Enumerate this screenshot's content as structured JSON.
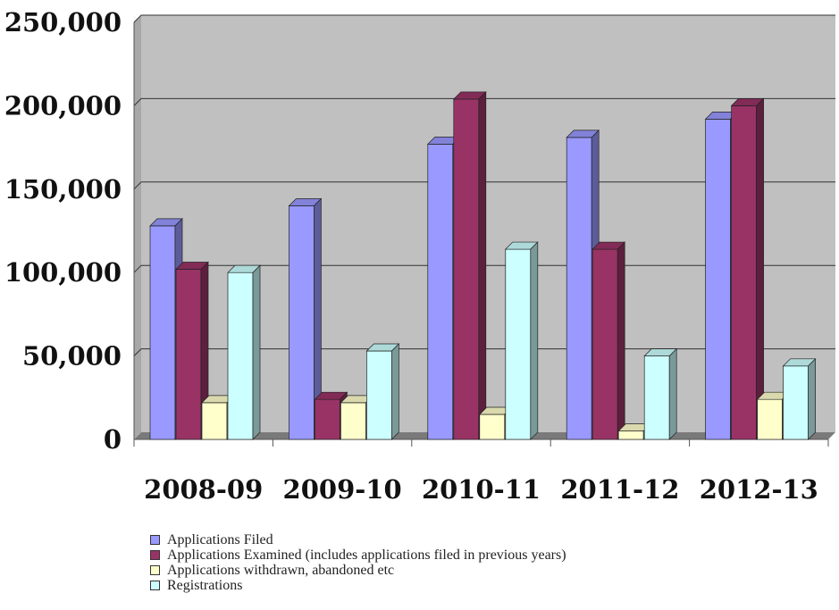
{
  "chart_data": {
    "type": "bar",
    "categories": [
      "2008-09",
      "2009-10",
      "2010-11",
      "2011-12",
      "2012-13"
    ],
    "series": [
      {
        "name": "Applications Filed",
        "color": "#9999ff",
        "values": [
          128000,
          140000,
          177000,
          181000,
          192000
        ]
      },
      {
        "name": "Applications Examined (includes applications filed in previous years)",
        "color": "#993366",
        "values": [
          102000,
          24000,
          204000,
          114000,
          200000
        ]
      },
      {
        "name": "Applications withdrawn, abandoned etc",
        "color": "#ffffcc",
        "values": [
          22000,
          22000,
          15000,
          5000,
          24000
        ]
      },
      {
        "name": "Registrations",
        "color": "#ccffff",
        "values": [
          100000,
          53000,
          114000,
          50000,
          44000
        ]
      }
    ],
    "yticks": [
      "0",
      "50,000",
      "100,000",
      "150,000",
      "200,000",
      "250,000"
    ],
    "ylim": [
      0,
      250000
    ],
    "grid": true,
    "legend_position": "bottom",
    "plot_background": "#c0c0c0",
    "title": "",
    "xlabel": "",
    "ylabel": ""
  }
}
